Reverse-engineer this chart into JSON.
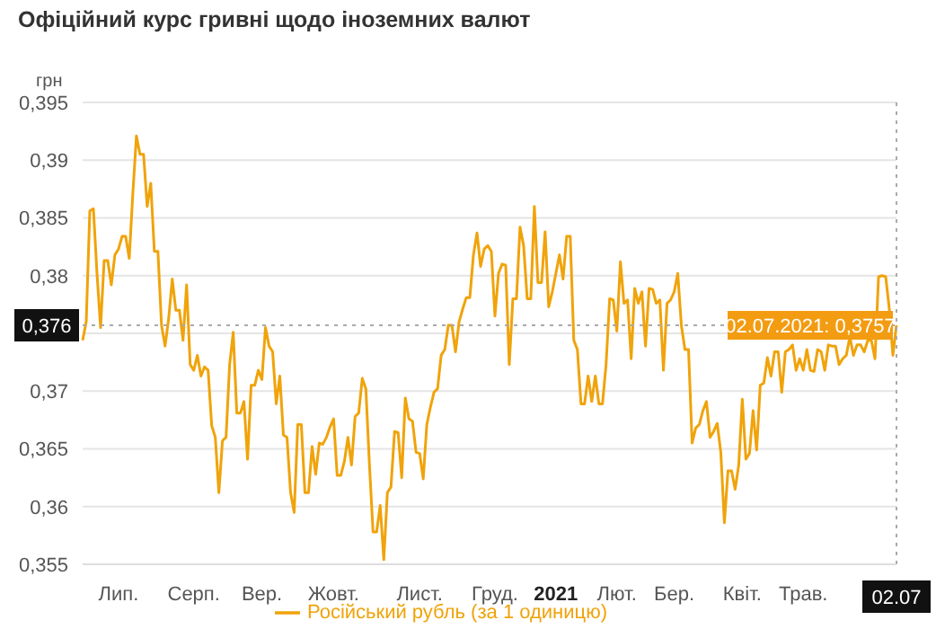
{
  "chart_data": {
    "type": "line",
    "title": "Офіційний курс гривні щодо іноземних валют",
    "ylabel": "грн",
    "categories": [
      null,
      null,
      null,
      null,
      null,
      null,
      null,
      null,
      null,
      null,
      "Лип.",
      null,
      null,
      null,
      null,
      null,
      null,
      null,
      null,
      null,
      null,
      null,
      null,
      null,
      null,
      null,
      null,
      null,
      null,
      null,
      null,
      "Серп.",
      null,
      null,
      null,
      null,
      null,
      null,
      null,
      null,
      null,
      null,
      null,
      null,
      null,
      null,
      null,
      null,
      null,
      null,
      "Вер.",
      null,
      null,
      null,
      null,
      null,
      null,
      null,
      null,
      null,
      null,
      null,
      null,
      null,
      null,
      null,
      null,
      null,
      null,
      null,
      "Жовт.",
      null,
      null,
      null,
      null,
      null,
      null,
      null,
      null,
      null,
      null,
      null,
      null,
      null,
      null,
      null,
      null,
      null,
      null,
      null,
      null,
      null,
      null,
      null,
      "Лист.",
      null,
      null,
      null,
      null,
      null,
      null,
      null,
      null,
      null,
      null,
      null,
      null,
      null,
      null,
      null,
      null,
      null,
      null,
      null,
      null,
      "Груд.",
      null,
      null,
      null,
      null,
      null,
      null,
      null,
      null,
      null,
      null,
      null,
      null,
      null,
      null,
      null,
      null,
      "2021",
      null,
      null,
      null,
      null,
      null,
      null,
      null,
      null,
      null,
      null,
      null,
      null,
      null,
      null,
      null,
      null,
      "Лют.",
      null,
      null,
      null,
      null,
      null,
      null,
      null,
      null,
      null,
      null,
      null,
      null,
      null,
      null,
      null,
      "Бер.",
      null,
      null,
      null,
      null,
      null,
      null,
      null,
      null,
      null,
      null,
      null,
      null,
      null,
      null,
      null,
      null,
      null,
      null,
      "Квіт.",
      null,
      null,
      null,
      null,
      null,
      null,
      null,
      null,
      null,
      null,
      null,
      null,
      null,
      null,
      null,
      null,
      "Трав.",
      null,
      null,
      null,
      null,
      null,
      null,
      null,
      null,
      null,
      null,
      null,
      null,
      null,
      null,
      null,
      null,
      null,
      null,
      null,
      null,
      null,
      null,
      null,
      null,
      null,
      "02.07"
    ],
    "series": [
      {
        "name": "Російський рубль (за 1 одиницю)",
        "color": "#f0a30a",
        "values": [
          0.3744,
          0.376,
          0.3856,
          0.3858,
          0.3802,
          0.3755,
          0.3813,
          0.3813,
          0.3792,
          0.3818,
          0.3823,
          0.3834,
          0.3834,
          0.3815,
          0.3871,
          0.3921,
          0.3905,
          0.3905,
          0.386,
          0.388,
          0.3821,
          0.3821,
          0.3757,
          0.3739,
          0.3763,
          0.3797,
          0.377,
          0.377,
          0.3744,
          0.3792,
          0.3723,
          0.3718,
          0.3731,
          0.3713,
          0.3721,
          0.3718,
          0.367,
          0.366,
          0.3612,
          0.3657,
          0.366,
          0.3723,
          0.3751,
          0.3681,
          0.3681,
          0.3691,
          0.3641,
          0.3705,
          0.3705,
          0.3718,
          0.371,
          0.3755,
          0.3739,
          0.3734,
          0.3689,
          0.3713,
          0.3662,
          0.366,
          0.3612,
          0.3595,
          0.3671,
          0.3671,
          0.3612,
          0.3612,
          0.3652,
          0.3628,
          0.3655,
          0.3654,
          0.366,
          0.3669,
          0.3676,
          0.3627,
          0.3627,
          0.3639,
          0.366,
          0.3636,
          0.3678,
          0.3681,
          0.3711,
          0.3702,
          0.3636,
          0.3578,
          0.3578,
          0.3601,
          0.3554,
          0.3612,
          0.3617,
          0.3665,
          0.3664,
          0.3625,
          0.3694,
          0.3676,
          0.3674,
          0.3647,
          0.3646,
          0.3624,
          0.3671,
          0.3686,
          0.3699,
          0.3702,
          0.3731,
          0.3736,
          0.3757,
          0.3757,
          0.3734,
          0.376,
          0.3771,
          0.3781,
          0.3781,
          0.3818,
          0.3837,
          0.3808,
          0.3823,
          0.3826,
          0.3821,
          0.3765,
          0.3802,
          0.381,
          0.3809,
          0.3723,
          0.378,
          0.378,
          0.3842,
          0.3826,
          0.378,
          0.378,
          0.386,
          0.3794,
          0.3794,
          0.3838,
          0.3773,
          0.3786,
          0.3802,
          0.3818,
          0.3797,
          0.3834,
          0.3834,
          0.3744,
          0.3736,
          0.3689,
          0.3689,
          0.3713,
          0.3691,
          0.3713,
          0.3689,
          0.3689,
          0.3723,
          0.378,
          0.3779,
          0.3752,
          0.3812,
          0.3776,
          0.3779,
          0.3728,
          0.3789,
          0.3776,
          0.3786,
          0.3739,
          0.3789,
          0.3788,
          0.3776,
          0.3779,
          0.3718,
          0.3776,
          0.3779,
          0.3786,
          0.3802,
          0.3757,
          0.3736,
          0.3736,
          0.3655,
          0.3668,
          0.3671,
          0.3683,
          0.3691,
          0.366,
          0.3665,
          0.3672,
          0.3647,
          0.3586,
          0.3631,
          0.3631,
          0.3615,
          0.3636,
          0.3693,
          0.3641,
          0.3646,
          0.3683,
          0.3649,
          0.3705,
          0.3707,
          0.3729,
          0.3713,
          0.3734,
          0.3734,
          0.3699,
          0.3734,
          0.3736,
          0.374,
          0.3718,
          0.3728,
          0.3718,
          0.3736,
          0.3718,
          0.3717,
          0.3736,
          0.3734,
          0.3718,
          0.374,
          0.3739,
          0.3739,
          0.3723,
          0.3728,
          0.3731,
          0.3747,
          0.3731,
          0.374,
          0.374,
          0.3734,
          0.3744,
          0.3744,
          0.3728,
          0.3799,
          0.38,
          0.3799,
          0.3771,
          0.3731,
          0.3757
        ]
      }
    ],
    "ylim": [
      0.355,
      0.395
    ],
    "yticks": [
      {
        "value": 0.355,
        "label": "0,355"
      },
      {
        "value": 0.36,
        "label": "0,36"
      },
      {
        "value": 0.365,
        "label": "0,365"
      },
      {
        "value": 0.37,
        "label": "0,37"
      },
      {
        "value": 0.375,
        "label": null
      },
      {
        "value": 0.38,
        "label": "0,38"
      },
      {
        "value": 0.385,
        "label": "0,385"
      },
      {
        "value": 0.39,
        "label": "0,39"
      },
      {
        "value": 0.395,
        "label": "0,395"
      }
    ],
    "ref_lines": [
      {
        "axis": "y",
        "value": 0.3757,
        "label": "0,376",
        "color": "#aaaaaa",
        "line_style": "dotted"
      },
      {
        "axis": "x",
        "value": "02.07",
        "color": "#aaaaaa",
        "line_style": "dotted"
      }
    ],
    "annotations": [
      {
        "text": "02.07.2021: 0,3757",
        "x": "02.07",
        "y": 0.3757
      }
    ],
    "grid": "y",
    "legend": "bottom"
  }
}
